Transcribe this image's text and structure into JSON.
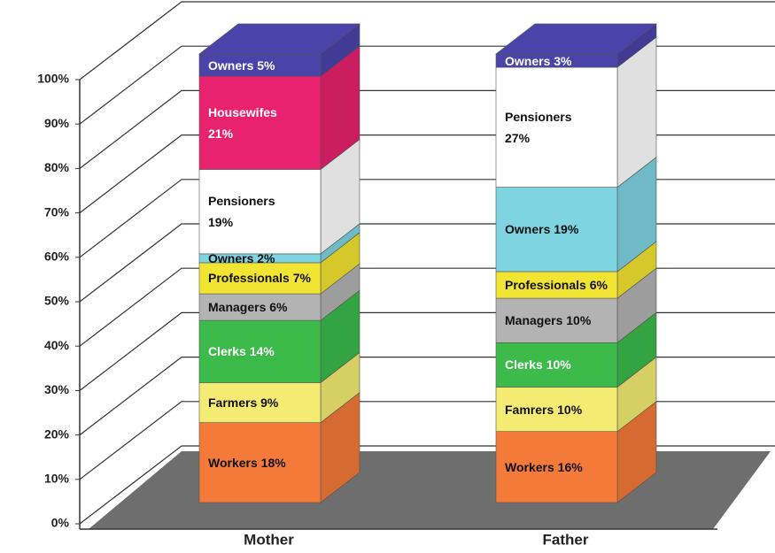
{
  "chart_data": {
    "type": "bar3d_stacked",
    "categories": [
      "Mother",
      "Father"
    ],
    "stacks": [
      {
        "values": [
          18,
          9,
          14,
          6,
          7,
          2,
          19,
          21,
          5
        ],
        "value_labels": [
          "Workers 18%",
          "Farmers 9%",
          "Clerks 14%",
          "Managers 6%",
          "Professionals 7%",
          "Owners 2%",
          "Pensioners\n19%",
          "Housewifes\n21%",
          "Owners 5%"
        ],
        "colors": [
          "#f47a3a",
          "#f4ec72",
          "#3cba4a",
          "#b3b3b3",
          "#f2e432",
          "#7fd4e2",
          "#ffffff",
          "#e8226e",
          "#4a44aa"
        ]
      },
      {
        "values": [
          16,
          10,
          10,
          10,
          6,
          19,
          27,
          3
        ],
        "value_labels": [
          "Workers 16%",
          "Famrers 10%",
          "Clerks 10%",
          "Managers 10%",
          "Professionals 6%",
          "Owners 19%",
          "Pensioners\n27%",
          "Owners 3%"
        ],
        "colors": [
          "#f47a3a",
          "#f4ec72",
          "#3cba4a",
          "#b3b3b3",
          "#f2e432",
          "#7fd4e2",
          "#ffffff",
          "#4a44aa"
        ]
      }
    ],
    "ylim": [
      0,
      100
    ],
    "yticks": [
      {
        "value": 0,
        "label": "0%"
      },
      {
        "value": 10,
        "label": "10%"
      },
      {
        "value": 20,
        "label": "20%"
      },
      {
        "value": 30,
        "label": "30%"
      },
      {
        "value": 40,
        "label": "40%"
      },
      {
        "value": 50,
        "label": "50%"
      },
      {
        "value": 60,
        "label": "60%"
      },
      {
        "value": 70,
        "label": "70%"
      },
      {
        "value": 80,
        "label": "80%"
      },
      {
        "value": 90,
        "label": "90%"
      },
      {
        "value": 100,
        "label": "100%"
      }
    ],
    "grid": true
  }
}
